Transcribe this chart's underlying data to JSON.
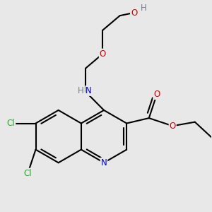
{
  "bg_color": "#e8e8e8",
  "bond_width": 1.5,
  "atom_bg": "#e8e8e8",
  "colors": {
    "C": "#000000",
    "N": "#0000cc",
    "O": "#cc0000",
    "Cl": "#22aa22",
    "H": "#708090"
  },
  "fontsize": 8.5
}
